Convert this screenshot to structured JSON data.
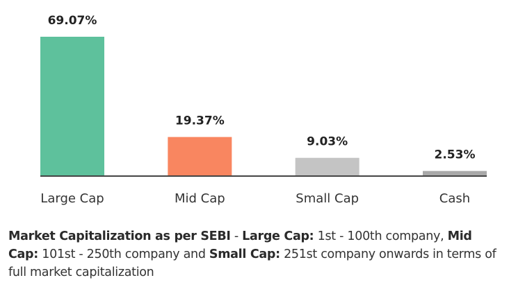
{
  "chart_data": {
    "type": "bar",
    "title": "",
    "xlabel": "",
    "ylabel": "",
    "ylim": [
      0,
      69.07
    ],
    "grid": false,
    "categories": [
      "Large Cap",
      "Mid Cap",
      "Small Cap",
      "Cash"
    ],
    "values": [
      69.07,
      19.37,
      9.03,
      2.53
    ],
    "value_labels": [
      "69.07%",
      "19.37%",
      "9.03%",
      "2.53%"
    ],
    "colors": [
      "#5ec19c",
      "#f98660",
      "#c4c4c4",
      "#a9a9a9"
    ]
  },
  "footnote": {
    "title": "Market Capitalization as per SEBI",
    "sep1": " - ",
    "large_label": "Large Cap:",
    "large_text": " 1st - 100th company, ",
    "mid_label": "Mid Cap:",
    "mid_text": " 101st - 250th company and ",
    "small_label": "Small Cap:",
    "small_text": " 251st company onwards in terms of full market capitalization"
  }
}
